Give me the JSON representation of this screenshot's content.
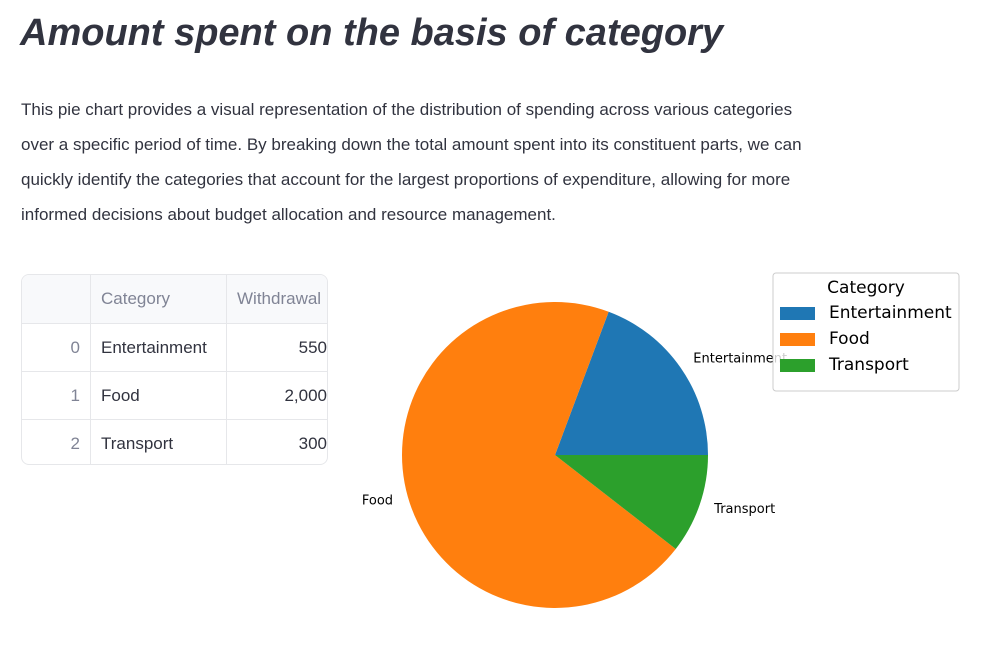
{
  "header": {
    "title": "Amount spent on the basis of category"
  },
  "description": {
    "lines": [
      "This pie chart provides a visual representation of the distribution of spending across various categories",
      "over a specific period of time. By breaking down the total amount spent into its constituent parts, we can",
      "quickly identify the categories that account for the largest proportions of expenditure, allowing for more",
      "informed decisions about budget allocation and resource management."
    ]
  },
  "table": {
    "columns": [
      "Category",
      "Withdrawal"
    ],
    "rows": [
      [
        "0",
        "Entertainment",
        "550"
      ],
      [
        "1",
        "Food",
        "2,000"
      ],
      [
        "2",
        "Transport",
        "300"
      ]
    ]
  },
  "chart_data": {
    "type": "pie",
    "categories": [
      "Entertainment",
      "Food",
      "Transport"
    ],
    "values": [
      550,
      2000,
      300
    ],
    "colors": [
      "#1f77b4",
      "#ff7f0e",
      "#2ca02c"
    ],
    "legend_title": "Category",
    "legend": "upper right"
  }
}
